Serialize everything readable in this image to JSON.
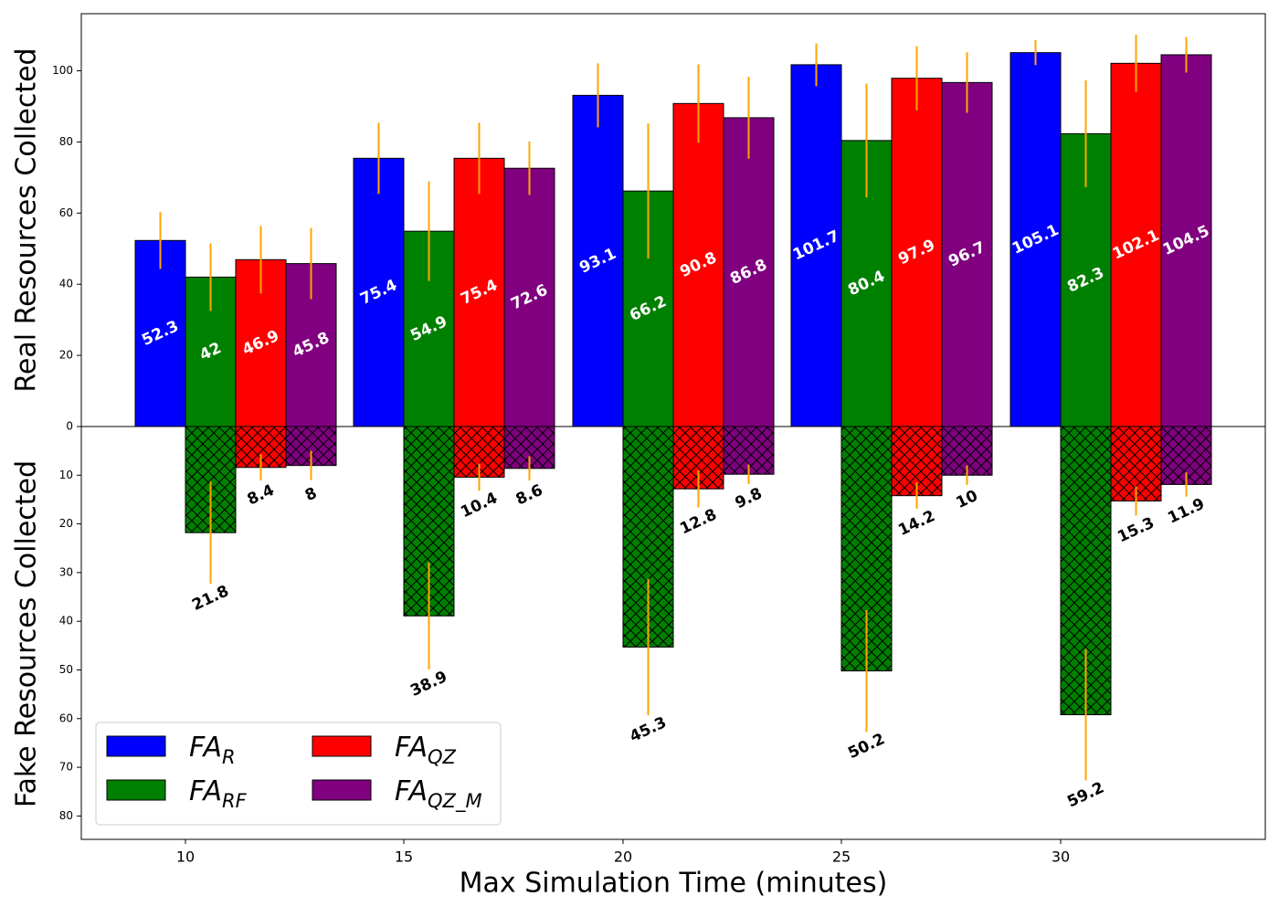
{
  "chart_data": {
    "type": "bar",
    "xlabel": "Max Simulation Time (minutes)",
    "ylabel_top": "Real Resources Collected",
    "ylabel_bottom": "Fake Resources Collected",
    "categories": [
      "10",
      "15",
      "20",
      "25",
      "30"
    ],
    "ylim_top": [
      0,
      115
    ],
    "ylim_bottom": [
      0,
      85
    ],
    "yticks_top": [
      "0",
      "20",
      "40",
      "60",
      "80",
      "100"
    ],
    "yticks_bottom": [
      "10",
      "20",
      "30",
      "40",
      "50",
      "60",
      "70",
      "80"
    ],
    "grid": false,
    "legend_position": "lower-left",
    "errorbar_color": "#ffa500",
    "series": [
      {
        "name": "FA_R",
        "legend_base": "FA",
        "legend_sub": "R",
        "color": "#0000ff",
        "label_color": "#ffffff",
        "real": [
          52.3,
          75.4,
          93.1,
          101.7,
          105.1
        ],
        "real_labels": [
          "52.3",
          "75.4",
          "93.1",
          "101.7",
          "105.1"
        ],
        "real_err": [
          8,
          10,
          9,
          6,
          3.5
        ],
        "fake": null,
        "fake_labels": null,
        "fake_err": null
      },
      {
        "name": "FA_RF",
        "legend_base": "FA",
        "legend_sub": "RF",
        "color": "#008000",
        "label_color": "#ffffff",
        "real": [
          42,
          54.9,
          66.2,
          80.4,
          82.3
        ],
        "real_labels": [
          "42",
          "54.9",
          "66.2",
          "80.4",
          "82.3"
        ],
        "real_err": [
          9.5,
          14,
          19,
          16,
          15
        ],
        "fake": [
          21.8,
          38.9,
          45.3,
          50.2,
          59.2
        ],
        "fake_labels": [
          "21.8",
          "38.9",
          "45.3",
          "50.2",
          "59.2"
        ],
        "fake_err": [
          10.5,
          11,
          14,
          12.5,
          13.5
        ]
      },
      {
        "name": "FA_QZ",
        "legend_base": "FA",
        "legend_sub": "QZ",
        "color": "#ff0000",
        "label_color": "#ffffff",
        "real": [
          46.9,
          75.4,
          90.8,
          97.9,
          102.1
        ],
        "real_labels": [
          "46.9",
          "75.4",
          "90.8",
          "97.9",
          "102.1"
        ],
        "real_err": [
          9.5,
          10,
          11,
          9,
          8
        ],
        "fake": [
          8.4,
          10.4,
          12.8,
          14.2,
          15.3
        ],
        "fake_labels": [
          "8.4",
          "10.4",
          "12.8",
          "14.2",
          "15.3"
        ],
        "fake_err": [
          2.7,
          2.8,
          3.8,
          2.7,
          3
        ]
      },
      {
        "name": "FA_QZ_M",
        "legend_base": "FA",
        "legend_sub": "QZ_M",
        "color": "#800080",
        "label_color": "#ffffff",
        "real": [
          45.8,
          72.6,
          86.8,
          96.7,
          104.5
        ],
        "real_labels": [
          "45.8",
          "72.6",
          "86.8",
          "96.7",
          "104.5"
        ],
        "real_err": [
          10,
          7.5,
          11.5,
          8.5,
          5
        ],
        "fake": [
          8,
          8.6,
          9.8,
          10,
          11.9
        ],
        "fake_labels": [
          "8",
          "8.6",
          "9.8",
          "10",
          "11.9"
        ],
        "fake_err": [
          3,
          2.5,
          2,
          2,
          2.5
        ]
      }
    ]
  }
}
